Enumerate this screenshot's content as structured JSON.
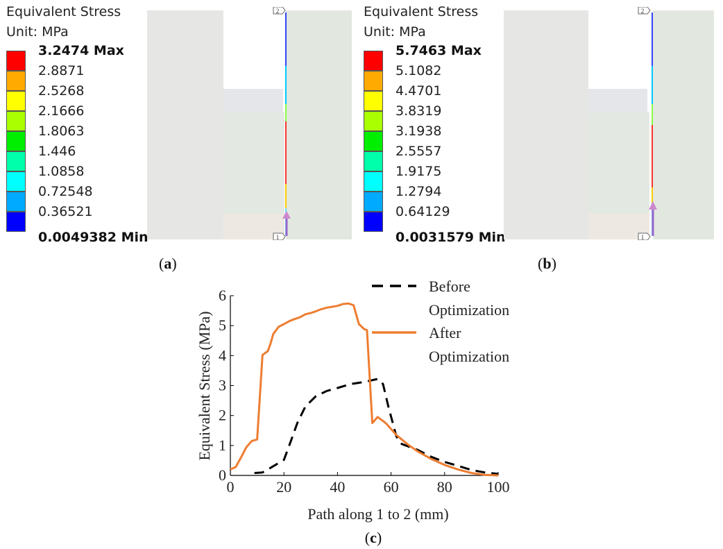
{
  "panels": [
    {
      "id": "a",
      "legend_title": "Equivalent Stress",
      "legend_unit": "Unit: MPa",
      "max_label": "3.2474 Max",
      "labels": [
        "2.8871",
        "2.5268",
        "2.1666",
        "1.8063",
        "1.446",
        "1.0858",
        "0.72548",
        "0.36521"
      ],
      "min_label": "0.0049382 Min",
      "caption_letter": "a",
      "path_points": [
        "1",
        "2"
      ]
    },
    {
      "id": "b",
      "legend_title": "Equivalent Stress",
      "legend_unit": "Unit: MPa",
      "max_label": "5.7463 Max",
      "labels": [
        "5.1082",
        "4.4701",
        "3.8319",
        "3.1938",
        "2.5557",
        "1.9175",
        "1.2794",
        "0.64129"
      ],
      "min_label": "0.0031579 Min",
      "caption_letter": "b",
      "path_points": [
        "1",
        "2"
      ]
    }
  ],
  "legend_colors": [
    "#ff0000",
    "#ffaa00",
    "#ffff00",
    "#aaff00",
    "#00ee00",
    "#00ffaa",
    "#00ffff",
    "#00aaff",
    "#0000ff"
  ],
  "chart_data": {
    "type": "line",
    "xlabel": "Path along 1 to 2 (mm)",
    "ylabel": "Equivalent Stress (MPa)",
    "xlim": [
      0,
      100
    ],
    "ylim": [
      0,
      6
    ],
    "xticks": [
      0,
      20,
      40,
      60,
      80,
      100
    ],
    "yticks": [
      0,
      1,
      2,
      3,
      4,
      5,
      6
    ],
    "legend_position": "top-right",
    "caption_letter": "c",
    "series": [
      {
        "name": "Before Optimization",
        "name_lines": [
          "Before",
          "Optimization"
        ],
        "style": "dashed",
        "color": "#000000",
        "x": [
          9,
          12,
          14,
          20,
          22,
          25,
          28,
          32,
          36,
          40,
          45,
          50,
          55,
          57,
          59,
          62,
          64,
          70,
          75,
          80,
          85,
          90,
          95,
          100
        ],
        "y": [
          0.08,
          0.1,
          0.2,
          0.52,
          1.0,
          1.75,
          2.3,
          2.65,
          2.82,
          2.92,
          3.05,
          3.12,
          3.22,
          3.05,
          2.3,
          1.3,
          1.05,
          0.85,
          0.62,
          0.45,
          0.32,
          0.18,
          0.1,
          0.05
        ]
      },
      {
        "name": "After Optimization",
        "name_lines": [
          "After",
          "Optimization"
        ],
        "style": "solid",
        "color": "#ed7d31",
        "x": [
          0,
          2,
          4,
          6,
          8,
          10,
          12,
          14,
          15,
          16,
          18,
          20,
          22,
          24,
          26,
          28,
          30,
          32,
          34,
          36,
          38,
          40,
          42,
          44,
          46,
          48,
          50,
          51,
          53,
          55,
          58,
          62,
          66,
          70,
          75,
          80,
          85,
          90,
          95,
          100
        ],
        "y": [
          0.2,
          0.28,
          0.6,
          0.95,
          1.15,
          1.2,
          4.02,
          4.15,
          4.4,
          4.72,
          4.96,
          5.05,
          5.15,
          5.22,
          5.28,
          5.38,
          5.42,
          5.48,
          5.55,
          5.6,
          5.63,
          5.66,
          5.72,
          5.74,
          5.68,
          5.05,
          4.88,
          4.85,
          1.75,
          1.95,
          1.75,
          1.35,
          1.05,
          0.8,
          0.55,
          0.35,
          0.2,
          0.08,
          0.02,
          0.0
        ]
      }
    ]
  }
}
